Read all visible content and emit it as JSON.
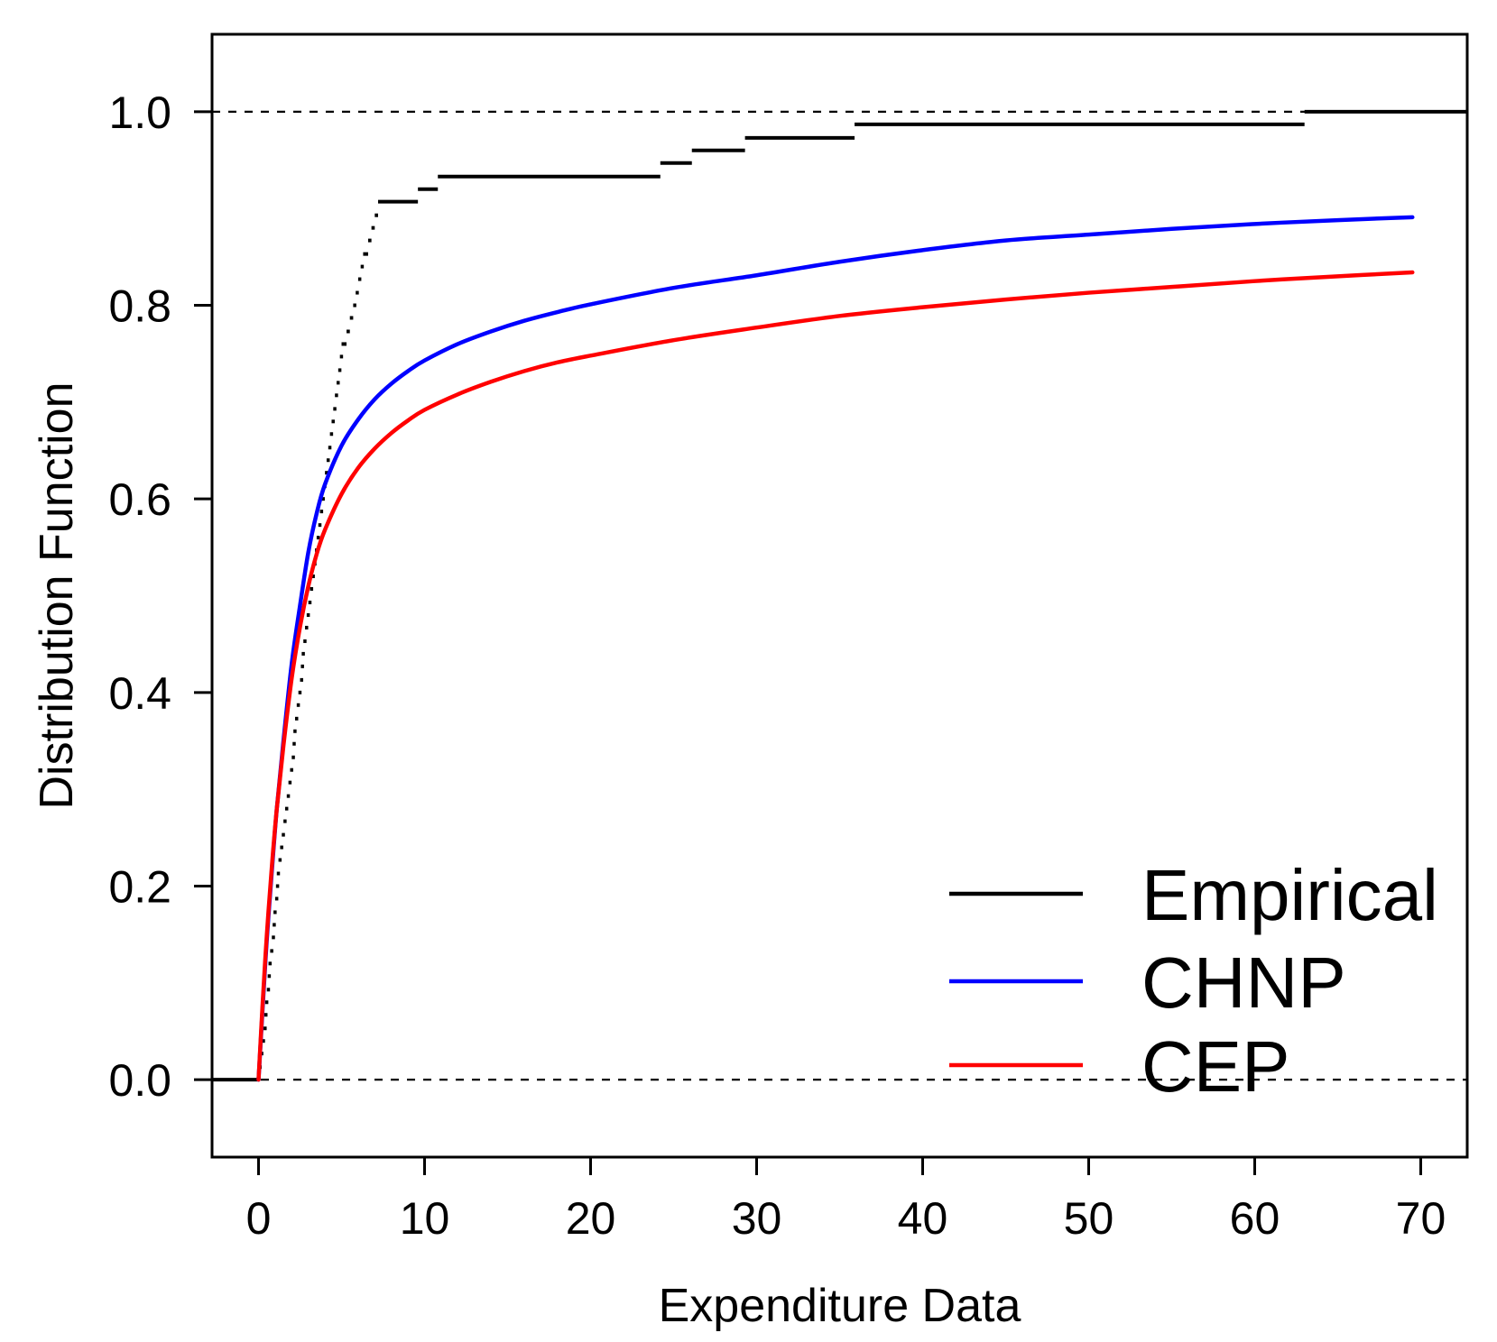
{
  "chart_data": {
    "type": "line",
    "title": "",
    "xlabel": "Expenditure Data",
    "ylabel": "Distribution Function",
    "xlim": [
      -2.8,
      72.8
    ],
    "ylim": [
      -0.08,
      1.08
    ],
    "x_ticks": [
      "0",
      "10",
      "20",
      "30",
      "40",
      "50",
      "60",
      "70"
    ],
    "y_ticks": [
      "0.0",
      "0.2",
      "0.4",
      "0.6",
      "0.8",
      "1.0"
    ],
    "reference_lines": [
      0,
      1
    ],
    "legend_position": "bottom-right",
    "colors": {
      "empirical": "#000000",
      "chnp": "#0000ff",
      "cep": "#ff0000",
      "reference": "#000000"
    },
    "series": [
      {
        "name": "Empirical",
        "kind": "ecdf-step",
        "color": "#000000",
        "start_x": -2.8,
        "end_x": 72.8,
        "jumps": [
          [
            0.0,
            0.013
          ],
          [
            0.1,
            0.027
          ],
          [
            0.2,
            0.04
          ],
          [
            0.3,
            0.053
          ],
          [
            0.35,
            0.067
          ],
          [
            0.4,
            0.08
          ],
          [
            0.5,
            0.093
          ],
          [
            0.55,
            0.107
          ],
          [
            0.6,
            0.12
          ],
          [
            0.7,
            0.133
          ],
          [
            0.8,
            0.147
          ],
          [
            0.85,
            0.16
          ],
          [
            0.9,
            0.173
          ],
          [
            1.0,
            0.187
          ],
          [
            1.05,
            0.2
          ],
          [
            1.1,
            0.213
          ],
          [
            1.2,
            0.227
          ],
          [
            1.3,
            0.24
          ],
          [
            1.4,
            0.253
          ],
          [
            1.5,
            0.267
          ],
          [
            1.6,
            0.28
          ],
          [
            1.7,
            0.293
          ],
          [
            1.8,
            0.307
          ],
          [
            1.9,
            0.32
          ],
          [
            2.0,
            0.333
          ],
          [
            2.05,
            0.347
          ],
          [
            2.1,
            0.36
          ],
          [
            2.2,
            0.373
          ],
          [
            2.3,
            0.387
          ],
          [
            2.4,
            0.4
          ],
          [
            2.5,
            0.413
          ],
          [
            2.55,
            0.427
          ],
          [
            2.6,
            0.44
          ],
          [
            2.7,
            0.453
          ],
          [
            2.8,
            0.467
          ],
          [
            2.9,
            0.48
          ],
          [
            3.0,
            0.493
          ],
          [
            3.1,
            0.507
          ],
          [
            3.2,
            0.52
          ],
          [
            3.3,
            0.533
          ],
          [
            3.4,
            0.547
          ],
          [
            3.5,
            0.56
          ],
          [
            3.6,
            0.573
          ],
          [
            3.7,
            0.587
          ],
          [
            3.8,
            0.6
          ],
          [
            3.9,
            0.613
          ],
          [
            4.0,
            0.627
          ],
          [
            4.1,
            0.64
          ],
          [
            4.2,
            0.653
          ],
          [
            4.3,
            0.667
          ],
          [
            4.4,
            0.68
          ],
          [
            4.5,
            0.693
          ],
          [
            4.6,
            0.707
          ],
          [
            4.7,
            0.72
          ],
          [
            4.8,
            0.733
          ],
          [
            4.9,
            0.747
          ],
          [
            5.0,
            0.76
          ],
          [
            5.3,
            0.773
          ],
          [
            5.5,
            0.787
          ],
          [
            5.7,
            0.8
          ],
          [
            5.85,
            0.813
          ],
          [
            6.0,
            0.827
          ],
          [
            6.15,
            0.84
          ],
          [
            6.3,
            0.853
          ],
          [
            6.6,
            0.867
          ],
          [
            6.8,
            0.88
          ],
          [
            7.0,
            0.893
          ],
          [
            7.2,
            0.907
          ],
          [
            9.6,
            0.92
          ],
          [
            10.8,
            0.933
          ],
          [
            24.2,
            0.947
          ],
          [
            26.1,
            0.96
          ],
          [
            29.3,
            0.973
          ],
          [
            35.9,
            0.987
          ],
          [
            63.0,
            1.0
          ]
        ]
      },
      {
        "name": "CHNP",
        "kind": "smooth",
        "color": "#0000ff",
        "x": [
          0.0,
          0.25,
          0.5,
          0.8,
          1.1,
          1.5,
          2.0,
          2.5,
          3.0,
          3.5,
          4.0,
          5.0,
          6.0,
          7.0,
          8.0,
          9.0,
          10.0,
          12.0,
          14.0,
          16.0,
          18.0,
          20.0,
          25.0,
          30.0,
          35.0,
          40.0,
          45.0,
          50.0,
          55.0,
          60.0,
          65.0,
          69.5
        ],
        "values": [
          0.0,
          0.075,
          0.145,
          0.215,
          0.28,
          0.35,
          0.43,
          0.49,
          0.545,
          0.585,
          0.615,
          0.655,
          0.682,
          0.703,
          0.719,
          0.732,
          0.743,
          0.76,
          0.773,
          0.784,
          0.793,
          0.801,
          0.818,
          0.831,
          0.845,
          0.857,
          0.867,
          0.873,
          0.879,
          0.884,
          0.888,
          0.891
        ]
      },
      {
        "name": "CEP",
        "kind": "smooth",
        "color": "#ff0000",
        "x": [
          0.0,
          0.25,
          0.5,
          0.8,
          1.1,
          1.5,
          2.0,
          2.5,
          3.0,
          3.5,
          4.0,
          5.0,
          6.0,
          7.0,
          8.0,
          9.0,
          10.0,
          12.0,
          14.0,
          16.0,
          18.0,
          20.0,
          25.0,
          30.0,
          35.0,
          40.0,
          45.0,
          50.0,
          55.0,
          60.0,
          65.0,
          69.5
        ],
        "values": [
          0.0,
          0.08,
          0.15,
          0.22,
          0.28,
          0.345,
          0.415,
          0.468,
          0.51,
          0.543,
          0.568,
          0.605,
          0.632,
          0.652,
          0.668,
          0.681,
          0.692,
          0.708,
          0.721,
          0.732,
          0.741,
          0.748,
          0.764,
          0.777,
          0.789,
          0.798,
          0.806,
          0.813,
          0.819,
          0.825,
          0.83,
          0.834
        ]
      }
    ]
  }
}
